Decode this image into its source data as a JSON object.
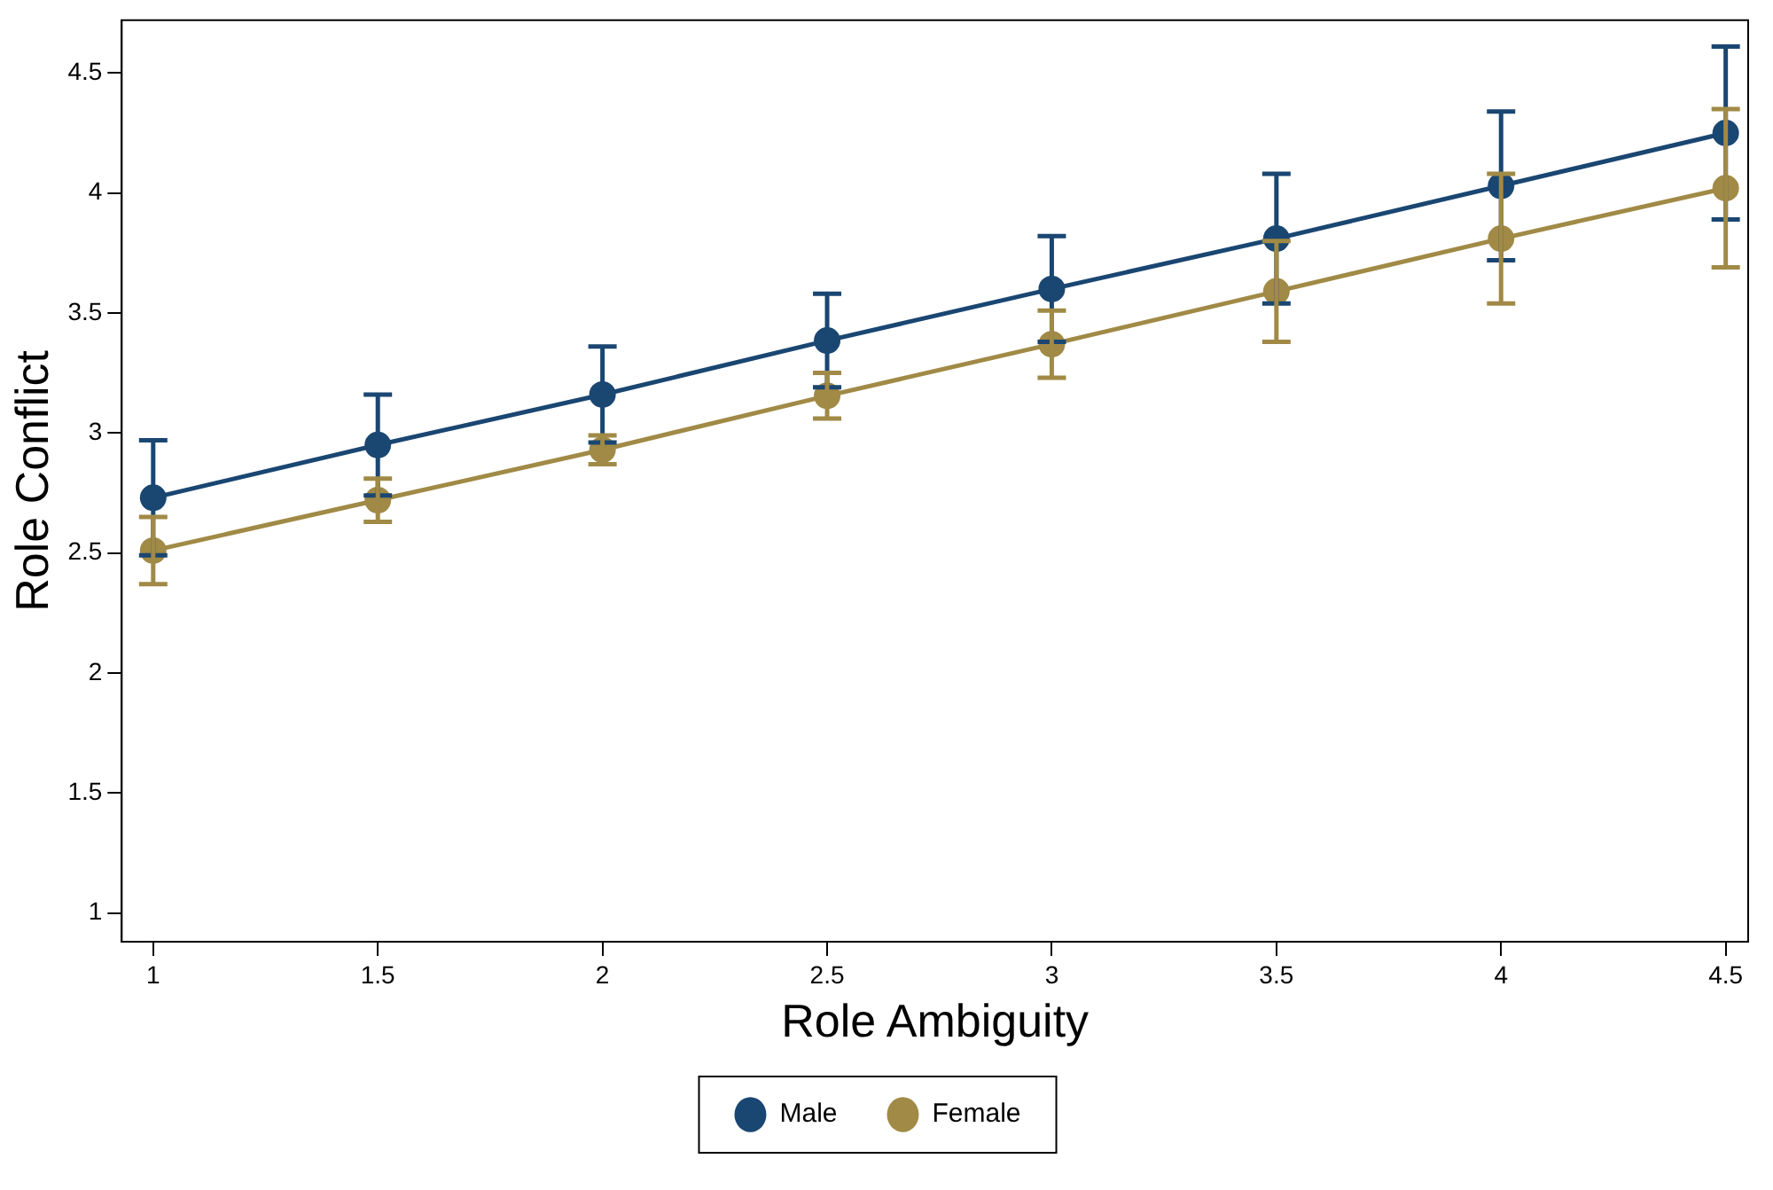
{
  "chart_data": {
    "type": "line",
    "xlabel": "Role Ambiguity",
    "ylabel": "Role Conflict",
    "x": [
      1,
      1.5,
      2,
      2.5,
      3,
      3.5,
      4,
      4.5
    ],
    "series": [
      {
        "name": "Male",
        "color": "#1a4672",
        "values": [
          2.73,
          2.95,
          3.16,
          3.385,
          3.6,
          3.81,
          4.03,
          4.25
        ],
        "errors": [
          0.24,
          0.21,
          0.2,
          0.195,
          0.22,
          0.27,
          0.31,
          0.36
        ]
      },
      {
        "name": "Female",
        "color": "#a08a46",
        "values": [
          2.51,
          2.72,
          2.93,
          3.155,
          3.37,
          3.59,
          3.81,
          4.02
        ],
        "errors": [
          0.14,
          0.09,
          0.06,
          0.095,
          0.14,
          0.21,
          0.27,
          0.33
        ]
      }
    ],
    "xlim": [
      0.93,
      4.55
    ],
    "xticks": [
      1,
      1.5,
      2,
      2.5,
      3,
      3.5,
      4,
      4.5
    ],
    "ylim": [
      0.88,
      4.72
    ],
    "yticks": [
      1,
      1.5,
      2,
      2.5,
      3,
      3.5,
      4,
      4.5
    ],
    "grid": false,
    "legend": "bottom",
    "marker": "circle",
    "line_style": "solid"
  }
}
